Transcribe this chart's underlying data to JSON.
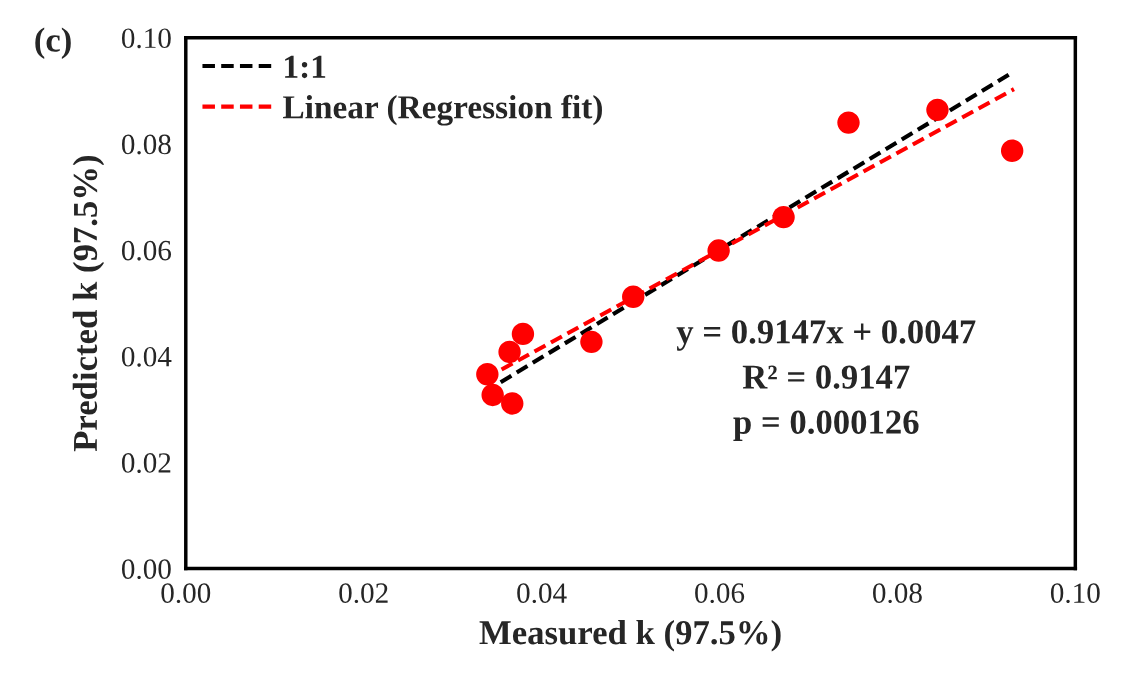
{
  "chart_data": {
    "type": "scatter",
    "xlabel": "Measured k (97.5%)",
    "ylabel": "Predicted k (97.5%)",
    "annotations": [
      "(c)",
      "y = 0.9147x + 0.0047",
      "R² = 0.9147",
      "p = 0.000126"
    ],
    "xlim": [
      0,
      0.1
    ],
    "ylim": [
      0,
      0.1
    ],
    "xticks": [
      {
        "value": 0,
        "label": "0.00"
      },
      {
        "value": 0.02,
        "label": "0.02"
      },
      {
        "value": 0.04,
        "label": "0.04"
      },
      {
        "value": 0.06,
        "label": "0.06"
      },
      {
        "value": 0.08,
        "label": "0.08"
      },
      {
        "value": 0.1,
        "label": "0.10"
      }
    ],
    "yticks": [
      {
        "value": 0,
        "label": "0.00"
      },
      {
        "value": 0.02,
        "label": "0.02"
      },
      {
        "value": 0.04,
        "label": "0.04"
      },
      {
        "value": 0.06,
        "label": "0.06"
      },
      {
        "value": 0.08,
        "label": "0.08"
      },
      {
        "value": 0.1,
        "label": "0.10"
      }
    ],
    "grid": false,
    "legend": "top left",
    "series": [
      {
        "color": "#ff0000",
        "marker": "circle",
        "x": [
          0.0339,
          0.0345,
          0.0364,
          0.0379,
          0.0367,
          0.0456,
          0.0503,
          0.0599,
          0.0672,
          0.0745,
          0.0845,
          0.0929
        ],
        "values": [
          0.0366,
          0.0327,
          0.0408,
          0.0442,
          0.0311,
          0.0427,
          0.0512,
          0.0599,
          0.0662,
          0.084,
          0.0864,
          0.0787
        ]
      },
      {
        "type": "line",
        "name": "1:1",
        "color": "#000000",
        "line_style": "dashed",
        "marker": "none",
        "x": [
          0.0354,
          0.0931
        ],
        "values": [
          0.0351,
          0.0936
        ]
      },
      {
        "type": "line",
        "name": "Linear (Regression fit)",
        "color": "#ff0000",
        "line_style": "dashed",
        "marker": "none",
        "x": [
          0.0355,
          0.0931
        ],
        "values": [
          0.0375,
          0.0903
        ]
      }
    ]
  }
}
